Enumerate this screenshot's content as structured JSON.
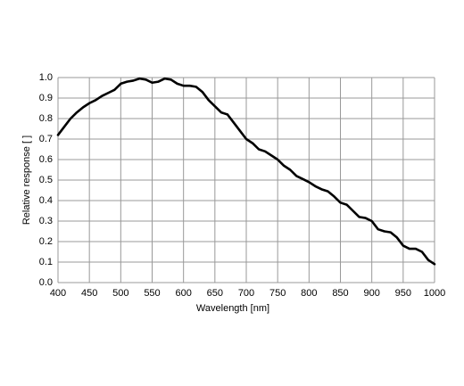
{
  "chart_data": {
    "type": "line",
    "xlabel": "Wavelength [nm]",
    "ylabel": "Relative response [ ]",
    "x": [
      400,
      410,
      420,
      430,
      440,
      450,
      460,
      470,
      480,
      490,
      500,
      510,
      520,
      530,
      540,
      550,
      560,
      570,
      580,
      590,
      600,
      610,
      620,
      630,
      640,
      650,
      660,
      670,
      680,
      690,
      700,
      710,
      720,
      730,
      740,
      750,
      760,
      770,
      780,
      790,
      800,
      810,
      820,
      830,
      840,
      850,
      860,
      870,
      880,
      890,
      900,
      910,
      920,
      930,
      940,
      950,
      960,
      970,
      980,
      990,
      1000
    ],
    "values": [
      0.72,
      0.76,
      0.8,
      0.83,
      0.855,
      0.875,
      0.89,
      0.91,
      0.925,
      0.94,
      0.97,
      0.98,
      0.985,
      0.995,
      0.99,
      0.975,
      0.98,
      0.995,
      0.99,
      0.97,
      0.96,
      0.96,
      0.955,
      0.93,
      0.89,
      0.86,
      0.83,
      0.82,
      0.78,
      0.74,
      0.7,
      0.68,
      0.65,
      0.64,
      0.62,
      0.6,
      0.57,
      0.55,
      0.52,
      0.505,
      0.49,
      0.47,
      0.455,
      0.445,
      0.42,
      0.39,
      0.38,
      0.35,
      0.32,
      0.315,
      0.3,
      0.26,
      0.25,
      0.245,
      0.22,
      0.18,
      0.165,
      0.165,
      0.15,
      0.11,
      0.09
    ],
    "color": "#000000",
    "xlim": [
      400,
      1000
    ],
    "xticks": [
      400,
      450,
      500,
      550,
      600,
      650,
      700,
      750,
      800,
      850,
      900,
      950,
      1000
    ],
    "ylim": [
      0,
      1
    ],
    "yticks": [
      {
        "value": 0,
        "label": "0.0"
      },
      0.1,
      0.2,
      0.3,
      0.4,
      0.5,
      0.6,
      0.7,
      0.8,
      0.9,
      {
        "value": 1,
        "label": "1.0"
      }
    ],
    "grid": true
  }
}
